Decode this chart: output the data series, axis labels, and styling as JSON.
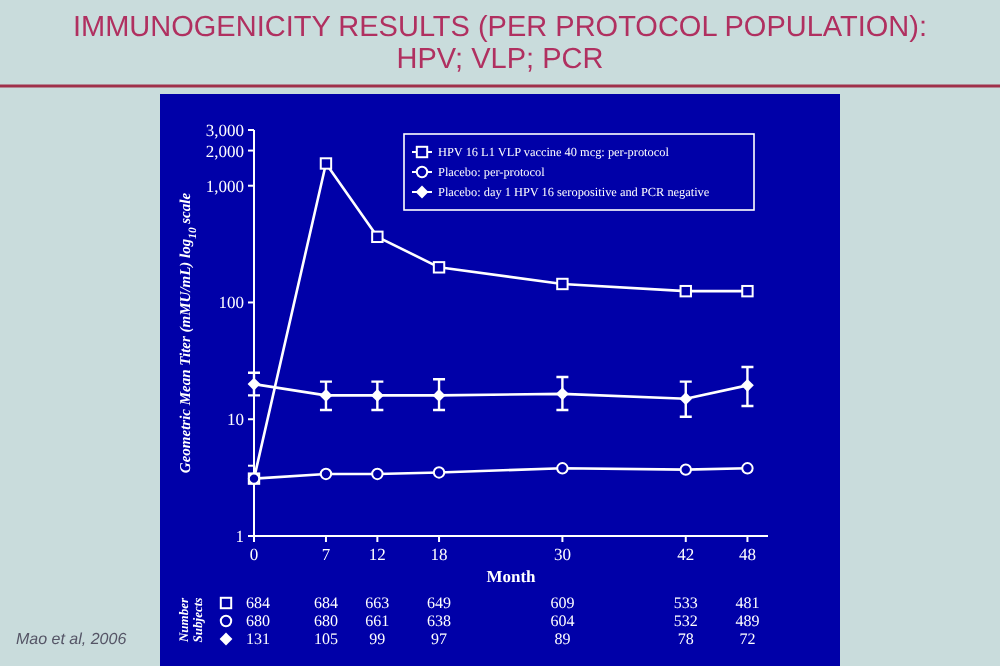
{
  "chart_data": {
    "type": "line",
    "title": "IMMUNOGENICITY RESULTS (PER PROTOCOL POPULATION):\nHPV; VLP; PCR",
    "xlabel": "Month",
    "ylabel": "Geometric Mean Titer (mMU/mL) log$_{10}$ scale",
    "x": [
      0,
      7,
      12,
      18,
      30,
      42,
      48
    ],
    "log": "y",
    "xlim": [
      0,
      50
    ],
    "ylim": [
      1,
      3000
    ],
    "xticks": [
      0,
      7,
      12,
      18,
      30,
      42,
      48
    ],
    "yticks": [
      1,
      {
        "value": 4,
        "label": null
      },
      10,
      100,
      {
        "value": 1000,
        "label": "1,000"
      },
      {
        "value": 2000,
        "label": "2,000"
      },
      {
        "value": 3000,
        "label": "3,000"
      }
    ],
    "grid": false,
    "legend": "top",
    "line_style": "solid",
    "series": [
      {
        "name": "HPV 16 L1 VLP vaccine 40 mcg: per-protocol",
        "color": "#ffffff",
        "marker": "square",
        "values": [
          3.1,
          1550,
          365,
          200,
          144,
          125,
          125
        ]
      },
      {
        "name": "Placebo: per-protocol",
        "color": "#ffffff",
        "marker": "circle",
        "values": [
          3.1,
          3.4,
          3.4,
          3.5,
          3.8,
          3.7,
          3.8
        ]
      },
      {
        "name": "Placebo: day 1 HPV 16 seropositive and PCR negative",
        "color": "#ffffff",
        "marker": "diamond",
        "values": [
          20,
          16,
          16,
          16,
          16.5,
          15,
          19.5
        ],
        "errors": [
          [
            16,
            25
          ],
          [
            12,
            21
          ],
          [
            12,
            21
          ],
          [
            12,
            22
          ],
          [
            12,
            23
          ],
          [
            10.5,
            21
          ],
          [
            13,
            28
          ]
        ]
      }
    ],
    "annotations": [
      "Number Subjects",
      "684 684 663 649 609 533 481",
      "680 680 661 638 604 532 489",
      "131 105 99 97 89 78 72",
      "Mao et al, 2006"
    ]
  }
}
